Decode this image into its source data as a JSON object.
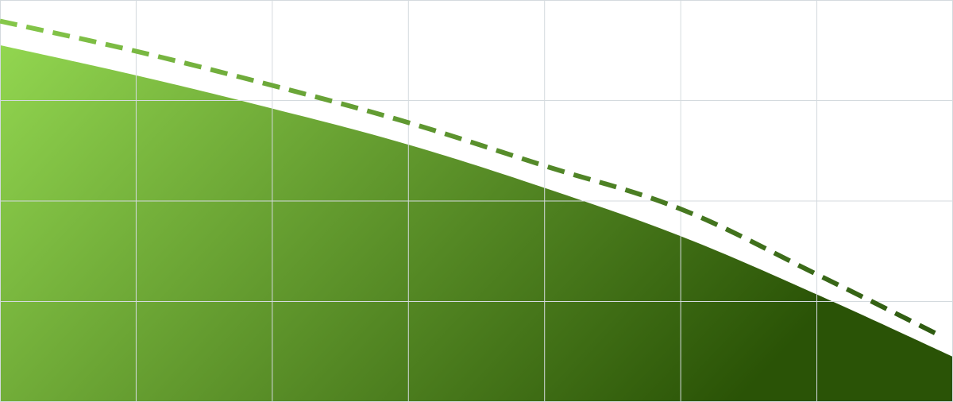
{
  "chart_data": {
    "type": "area",
    "title": "",
    "xlabel": "",
    "ylabel": "",
    "grid": true,
    "xlim": [
      0,
      7
    ],
    "ylim": [
      0,
      4
    ],
    "x": [
      0,
      1,
      2,
      3,
      4,
      5,
      6,
      7
    ],
    "series": [
      {
        "style": "area",
        "values": [
          3.55,
          3.25,
          2.92,
          2.56,
          2.13,
          1.65,
          1.07,
          0.45
        ],
        "gradient": [
          "#92d650",
          "#2a5306"
        ]
      },
      {
        "style": "dashed-line",
        "values": [
          3.79,
          3.49,
          3.15,
          2.78,
          2.35,
          1.92,
          1.27,
          0.66
        ],
        "gradient": [
          "#86c84a",
          "#2e5a10"
        ]
      }
    ],
    "colors": {
      "grid": "#d4dade",
      "background": "#ffffff"
    }
  }
}
